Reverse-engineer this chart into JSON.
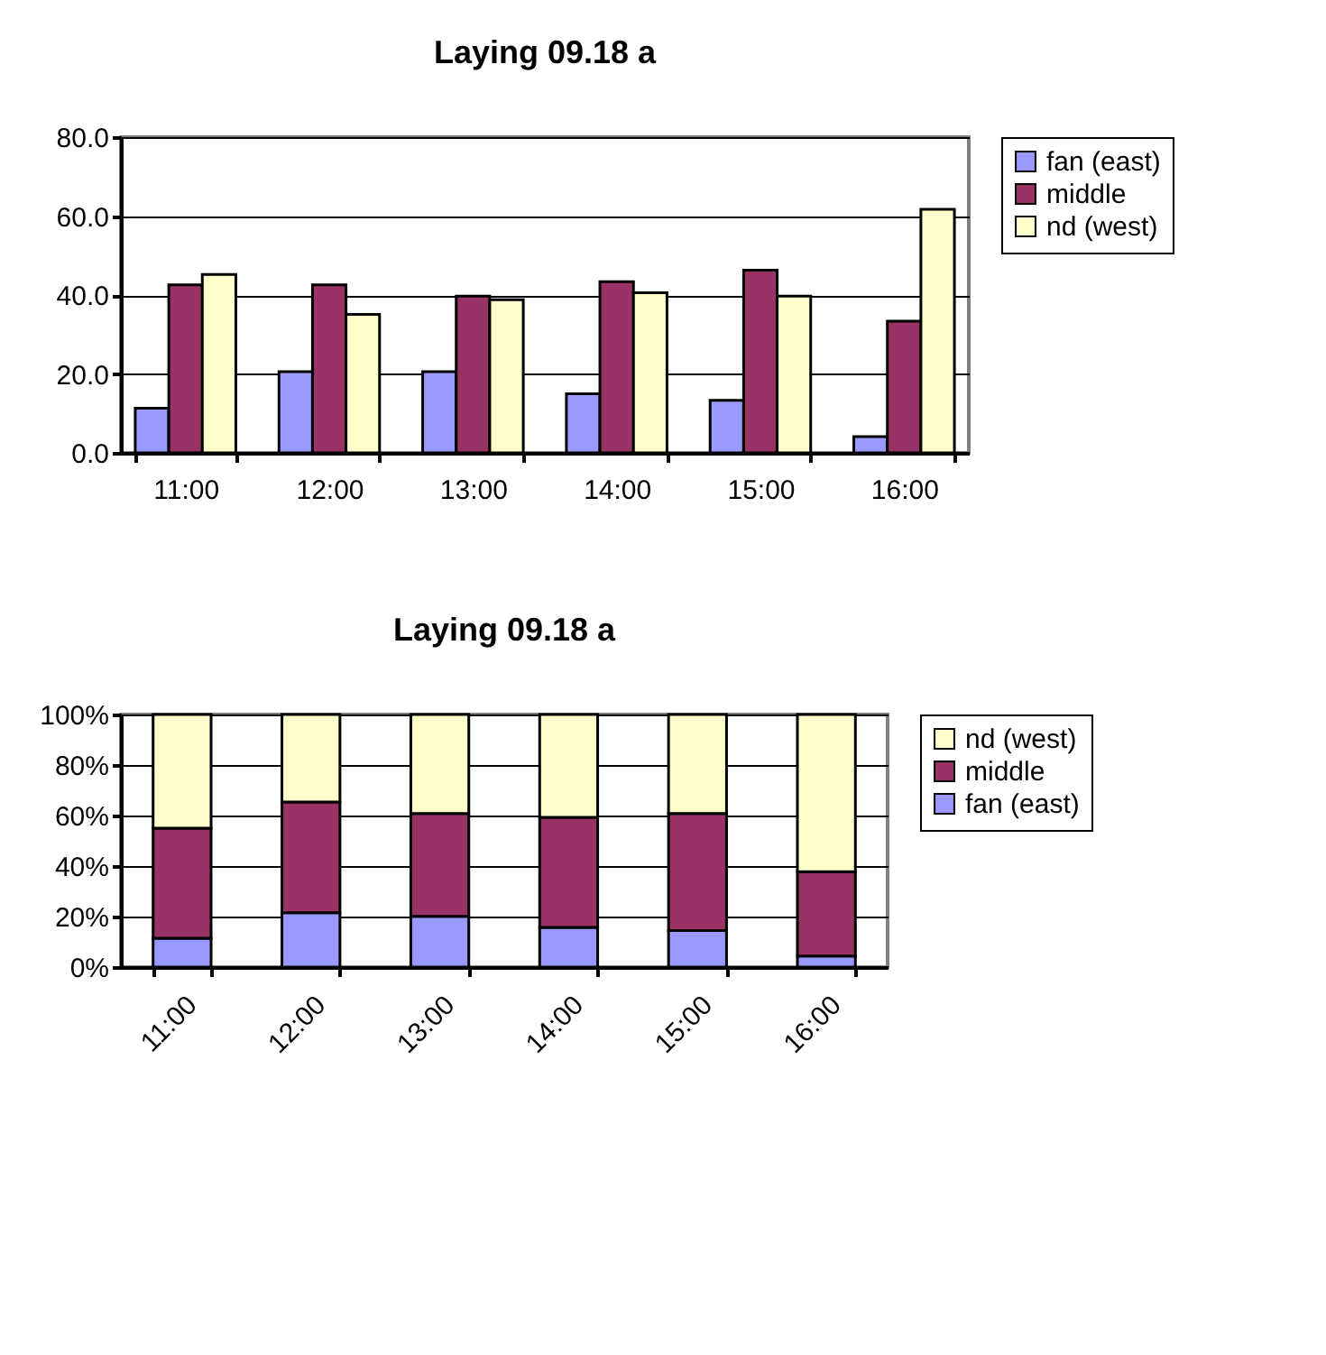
{
  "chart_data": [
    {
      "type": "bar",
      "title": "Laying 09.18 a",
      "categories": [
        "11:00",
        "12:00",
        "13:00",
        "14:00",
        "15:00",
        "16:00"
      ],
      "series": [
        {
          "name": "fan (east)",
          "color": "#9999ff",
          "values": [
            11.3,
            20.6,
            20.6,
            15.0,
            13.3,
            4.1
          ]
        },
        {
          "name": "middle",
          "color": "#993366",
          "values": [
            42.6,
            42.6,
            39.7,
            43.4,
            46.3,
            33.4
          ]
        },
        {
          "name": "nd (west)",
          "color": "#ffffcc",
          "values": [
            45.2,
            35.1,
            38.8,
            40.6,
            39.7,
            61.7
          ]
        }
      ],
      "ylim": [
        0,
        80
      ],
      "yticks": [
        {
          "value": 0,
          "label": "0.0"
        },
        {
          "value": 20,
          "label": "20.0"
        },
        {
          "value": 40,
          "label": "40.0"
        },
        {
          "value": 60,
          "label": "60.0"
        },
        {
          "value": 80,
          "label": "80.0"
        }
      ],
      "grid": "y",
      "legend": "right"
    },
    {
      "type": "bar",
      "stacked": true,
      "title": "Laying 09.18 a",
      "categories": [
        "11:00",
        "12:00",
        "13:00",
        "14:00",
        "15:00",
        "16:00"
      ],
      "series": [
        {
          "name": "fan (east)",
          "color": "#9999ff",
          "values": [
            11.4,
            21.5,
            20.1,
            15.7,
            14.5,
            4.4
          ]
        },
        {
          "name": "middle",
          "color": "#993366",
          "values": [
            43.6,
            43.9,
            40.7,
            43.6,
            46.3,
            33.4
          ]
        },
        {
          "name": "nd (west)",
          "color": "#ffffcc",
          "values": [
            45.0,
            34.6,
            39.2,
            40.7,
            39.2,
            62.2
          ]
        }
      ],
      "ylim": [
        0,
        100
      ],
      "yticks": [
        {
          "value": 0,
          "label": "0%"
        },
        {
          "value": 20,
          "label": "20%"
        },
        {
          "value": 40,
          "label": "40%"
        },
        {
          "value": 60,
          "label": "60%"
        },
        {
          "value": 80,
          "label": "80%"
        },
        {
          "value": 100,
          "label": "100%"
        }
      ],
      "grid": "y",
      "legend": "right"
    }
  ]
}
